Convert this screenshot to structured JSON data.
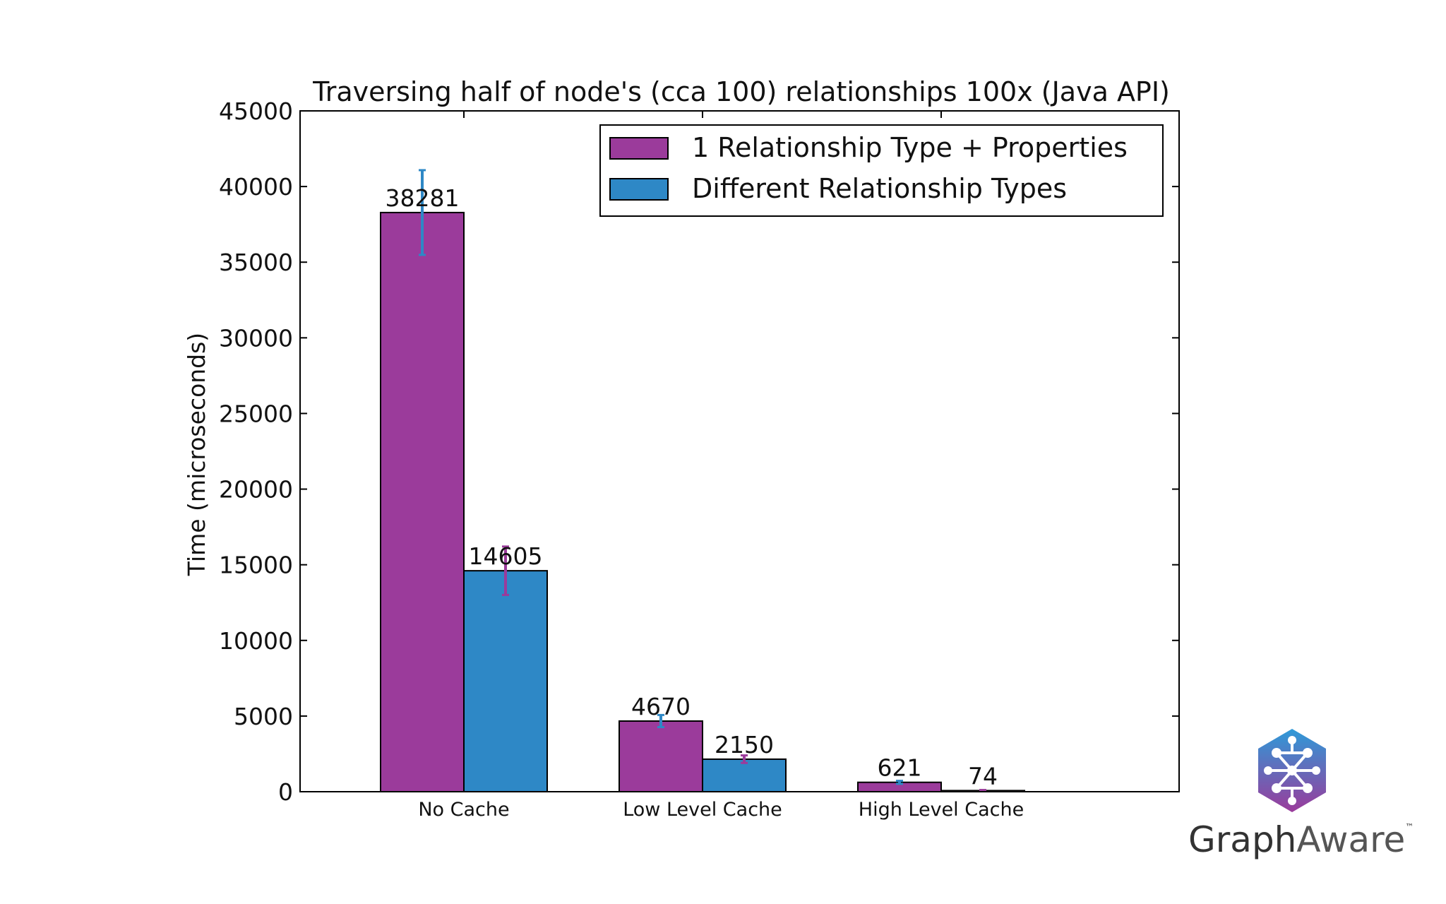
{
  "chart_data": {
    "type": "bar",
    "title": "Traversing half of node's (cca 100) relationships 100x (Java API)",
    "xlabel": "",
    "ylabel": "Time (microseconds)",
    "categories": [
      "No Cache",
      "Low Level Cache",
      "High Level Cache"
    ],
    "series": [
      {
        "name": "1 Relationship Type + Properties",
        "color": "#9b3b9b",
        "error_color": "#2e88c6",
        "values": [
          38281,
          4670,
          621
        ],
        "errors": [
          2800,
          400,
          100
        ]
      },
      {
        "name": "Different Relationship Types",
        "color": "#2e88c6",
        "error_color": "#9b3b9b",
        "values": [
          14605,
          2150,
          74
        ],
        "errors": [
          1600,
          250,
          40
        ]
      }
    ],
    "ylim": [
      0,
      45000
    ],
    "yticks": [
      0,
      5000,
      10000,
      15000,
      20000,
      25000,
      30000,
      35000,
      40000,
      45000
    ],
    "legend_position": "top-right",
    "grid": false
  },
  "branding": {
    "logo_word_bold": "Graph",
    "logo_word_light": "Aware",
    "trademark": "™",
    "logo_color_top": "#2e9ad8",
    "logo_color_bottom": "#9b3b9b"
  }
}
